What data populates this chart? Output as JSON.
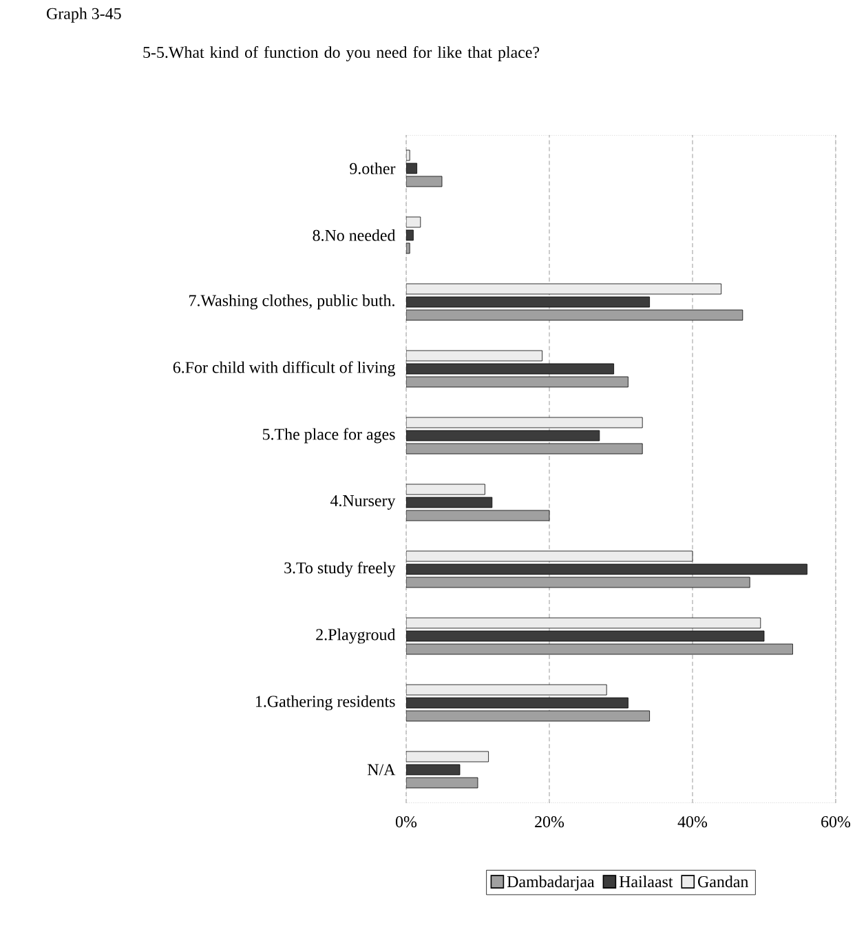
{
  "chart_data": {
    "type": "bar",
    "orientation": "horizontal",
    "title": "5-5.What kind of function do you need for like that place?",
    "annotations": [
      "Graph 3-45"
    ],
    "categories": [
      "9.other",
      "8.No needed",
      "7.Washing clothes, public buth.",
      "6.For child with difficult of living",
      "5.The place for ages",
      "4.Nursery",
      "3.To study freely",
      "2.Playgroud",
      "1.Gathering residents",
      "N/A"
    ],
    "series": [
      {
        "name": "Dambadarjaa",
        "color": "#a0a0a0",
        "values": [
          5,
          0.5,
          47,
          31,
          33,
          20,
          48,
          54,
          34,
          10
        ]
      },
      {
        "name": "Hailaast",
        "color": "#3c3c3c",
        "values": [
          1.5,
          1,
          34,
          29,
          27,
          12,
          56,
          50,
          31,
          7.5
        ]
      },
      {
        "name": "Gandan",
        "color": "#ececec",
        "values": [
          0.5,
          2,
          44,
          19,
          33,
          11,
          40,
          49.5,
          28,
          11.5
        ]
      }
    ],
    "xlim": [
      0,
      60
    ],
    "xticks": [
      {
        "value": 0,
        "label": "0%"
      },
      {
        "value": 20,
        "label": "20%"
      },
      {
        "value": 40,
        "label": "40%"
      },
      {
        "value": 60,
        "label": "60%"
      }
    ],
    "grid": "x",
    "legend": "bottom"
  }
}
